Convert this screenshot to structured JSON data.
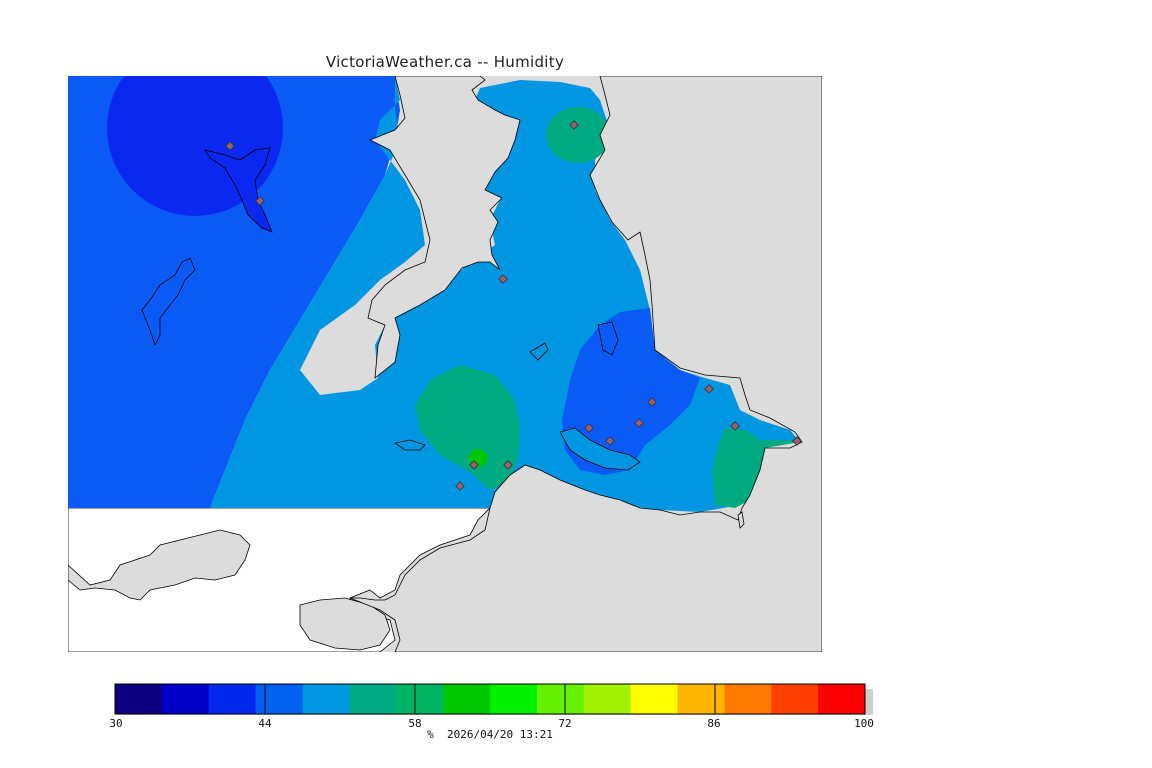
{
  "title": "VictoriaWeather.ca -- Humidity",
  "legend": {
    "tick_labels": [
      "30",
      "44",
      "58",
      "72",
      "86",
      "100"
    ],
    "unit": "%",
    "timestamp": "2026/04/20 13:21",
    "colors": [
      "#0c0080",
      "#0000c8",
      "#0028f0",
      "#0060f0",
      "#0096e1",
      "#00aa80",
      "#00b464",
      "#00c800",
      "#00f000",
      "#64f000",
      "#a0f000",
      "#ffff00",
      "#ffb400",
      "#ff7800",
      "#ff4000",
      "#ff0000"
    ]
  },
  "colors": {
    "land": "#dcdcdc",
    "water": "#ffffff",
    "h44_50": "#0a5af5",
    "h40_44": "#0a28f0",
    "h50_56": "#0096e1",
    "h56_62": "#00aa80",
    "h62_66": "#00c800"
  }
}
